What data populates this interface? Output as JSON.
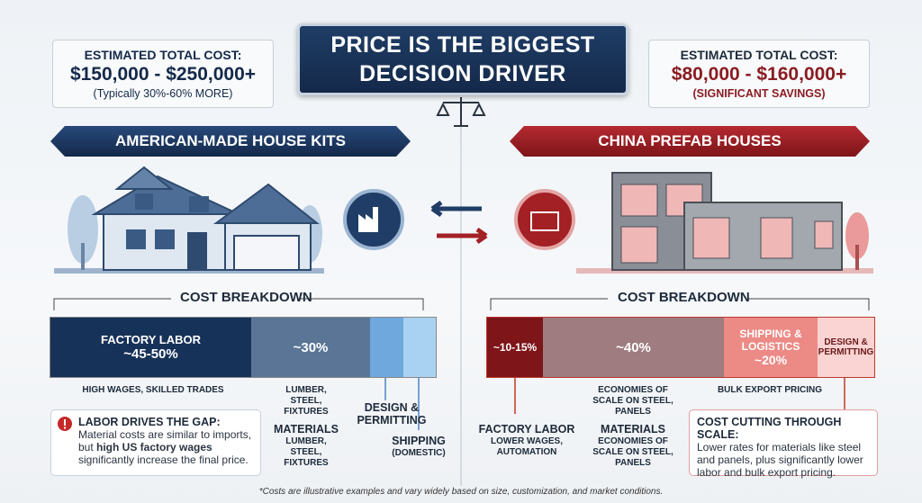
{
  "header": {
    "title": "PRICE IS THE BIGGEST DECISION DRIVER"
  },
  "left": {
    "cost_label": "ESTIMATED TOTAL COST:",
    "cost": "$150,000 - $250,000+",
    "cost_note": "(Typically 30%-60% MORE)",
    "heading": "AMERICAN-MADE HOUSE KITS",
    "breakdown_title": "COST BREAKDOWN",
    "segments": [
      {
        "label": "FACTORY LABOR",
        "value": "~45-50%"
      },
      {
        "value": "~30%"
      }
    ],
    "captions": {
      "labor": "HIGH WAGES, SKILLED TRADES",
      "materials_top": "LUMBER, STEEL, FIXTURES",
      "design": "DESIGN & PERMITTING",
      "materials": "MATERIALS",
      "materials_sub": "LUMBER, STEEL, FIXTURES",
      "shipping": "SHIPPING",
      "shipping_sub": "(DOMESTIC)"
    },
    "note": {
      "title": "LABOR DRIVES THE GAP:",
      "body": [
        "Material costs are similar to imports, but ",
        "high US factory wages",
        " significantly increase the final price."
      ]
    }
  },
  "right": {
    "cost_label": "ESTIMATED TOTAL COST:",
    "cost": "$80,000 - $160,000+",
    "cost_note": "(SIGNIFICANT SAVINGS)",
    "heading": "CHINA PREFAB HOUSES",
    "breakdown_title": "COST BREAKDOWN",
    "segments": [
      {
        "value": "~10-15%"
      },
      {
        "value": "~40%"
      },
      {
        "label": "SHIPPING & LOGISTICS",
        "value": "~20%"
      },
      {
        "label": "DESIGN & PERMITTING"
      }
    ],
    "captions": {
      "materials_top": "ECONOMIES OF SCALE ON STEEL, PANELS",
      "shipping": "BULK EXPORT PRICING",
      "labor": "FACTORY LABOR",
      "labor_sub": "LOWER WAGES, AUTOMATION",
      "materials": "MATERIALS",
      "materials_sub": "ECONOMIES OF SCALE ON STEEL, PANELS"
    },
    "note": {
      "title": "COST CUTTING THROUGH SCALE:",
      "body": "Lower rates for materials like steel and panels, plus significantly lower labor and bulk export pricing."
    }
  },
  "footnote": "*Costs are illustrative examples and vary widely based on size, customization, and market conditions."
}
